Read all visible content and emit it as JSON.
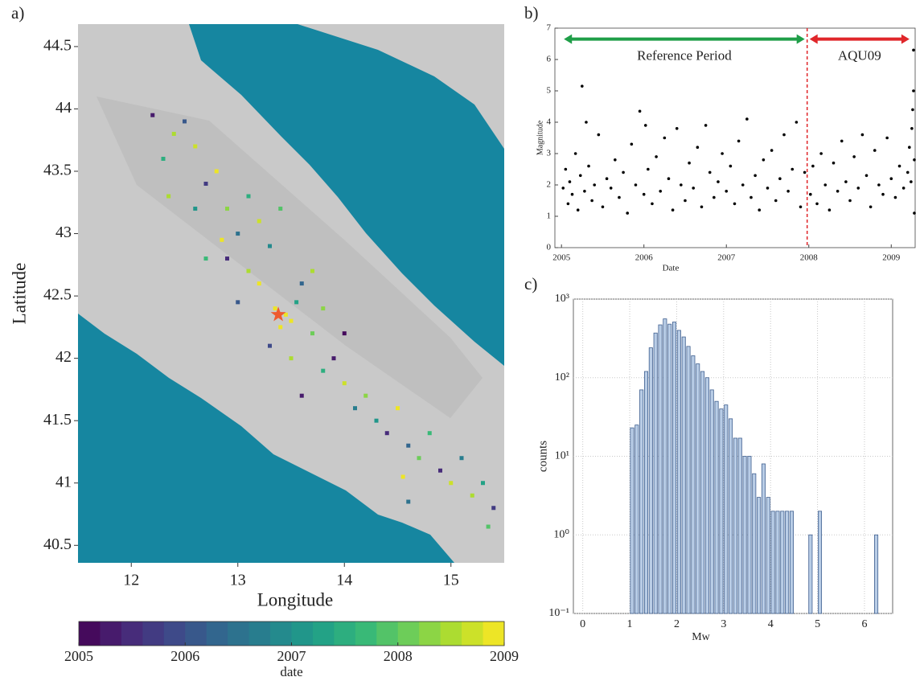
{
  "chart_data": [
    {
      "type": "map",
      "panel_label": "a)",
      "xlabel": "Longitude",
      "ylabel": "Latitude",
      "xlim": [
        11.5,
        15.5
      ],
      "ylim": [
        40.36,
        44.68
      ],
      "xticks": [
        12,
        13,
        14,
        15
      ],
      "yticks": [
        40.5,
        41,
        41.5,
        42,
        42.5,
        43,
        43.5,
        44,
        44.5
      ],
      "sea_color": "#1686a0",
      "land_color": "#c9c9c9",
      "x": [
        12.2,
        12.4,
        12.5,
        12.3,
        12.6,
        12.7,
        12.8,
        12.6,
        12.9,
        13.0,
        12.85,
        13.1,
        13.2,
        12.9,
        13.1,
        13.3,
        13.4,
        13.2,
        13.35,
        13.45,
        13.5,
        13.4,
        13.55,
        13.6,
        13.7,
        13.3,
        13.5,
        13.8,
        13.9,
        14.0,
        14.1,
        14.2,
        14.3,
        14.4,
        14.5,
        14.6,
        14.7,
        14.8,
        14.9,
        15.0,
        15.1,
        15.2,
        15.3,
        15.4,
        14.55,
        13.7,
        13.0,
        12.7,
        13.6,
        12.35,
        14.6,
        15.35,
        13.8,
        14.0
      ],
      "values": [
        43.95,
        43.8,
        43.9,
        43.6,
        43.7,
        43.4,
        43.5,
        43.2,
        43.2,
        43.0,
        42.95,
        43.3,
        43.1,
        42.8,
        42.7,
        42.9,
        43.2,
        42.6,
        42.4,
        42.35,
        42.3,
        42.25,
        42.45,
        42.6,
        42.2,
        42.1,
        42.0,
        41.9,
        42.0,
        41.8,
        41.6,
        41.7,
        41.5,
        41.4,
        41.6,
        41.3,
        41.2,
        41.4,
        41.1,
        41.0,
        41.2,
        40.9,
        41.0,
        40.8,
        41.05,
        42.7,
        42.45,
        42.8,
        41.7,
        43.3,
        40.85,
        40.65,
        42.4,
        42.2
      ],
      "color_values": [
        2005.3,
        2008.5,
        2006.1,
        2007.4,
        2008.8,
        2005.8,
        2008.9,
        2007.0,
        2008.2,
        2006.5,
        2008.95,
        2007.6,
        2008.7,
        2005.5,
        2008.4,
        2006.9,
        2007.9,
        2008.9,
        2009.0,
        2009.0,
        2008.95,
        2009.0,
        2007.2,
        2006.3,
        2008.1,
        2005.9,
        2008.6,
        2007.5,
        2005.2,
        2008.8,
        2006.7,
        2008.3,
        2007.1,
        2005.6,
        2008.9,
        2006.2,
        2008.0,
        2007.7,
        2005.4,
        2008.7,
        2006.8,
        2008.4,
        2007.3,
        2005.7,
        2008.95,
        2008.5,
        2006.0,
        2007.8,
        2005.3,
        2008.6,
        2006.4,
        2007.9,
        2008.2,
        2005.1
      ],
      "mainshock": {
        "lon": 13.38,
        "lat": 42.35,
        "color": "#ee5a2f"
      },
      "colorbar": {
        "label": "date",
        "colormap": "viridis",
        "color_levels": 20,
        "lim": [
          2005,
          2009
        ],
        "ticks": [
          2005,
          2006,
          2007,
          2008,
          2009
        ]
      }
    },
    {
      "type": "scatter",
      "panel_label": "b)",
      "xlabel": "Date",
      "ylabel": "Magnitude",
      "color": "#000000",
      "xlim": [
        2004.92,
        2009.29
      ],
      "ylim": [
        0,
        7
      ],
      "xticks": [
        2005,
        2006,
        2007,
        2008,
        2009
      ],
      "yticks": [
        0,
        1,
        2,
        3,
        4,
        5,
        6,
        7
      ],
      "x": [
        2005.02,
        2005.05,
        2005.08,
        2005.1,
        2005.13,
        2005.17,
        2005.2,
        2005.23,
        2005.25,
        2005.28,
        2005.3,
        2005.33,
        2005.37,
        2005.4,
        2005.45,
        2005.5,
        2005.55,
        2005.6,
        2005.65,
        2005.7,
        2005.75,
        2005.8,
        2005.85,
        2005.9,
        2005.95,
        2006.0,
        2006.02,
        2006.05,
        2006.1,
        2006.15,
        2006.2,
        2006.25,
        2006.3,
        2006.35,
        2006.4,
        2006.45,
        2006.5,
        2006.55,
        2006.6,
        2006.65,
        2006.7,
        2006.75,
        2006.8,
        2006.85,
        2006.9,
        2006.95,
        2007.0,
        2007.05,
        2007.1,
        2007.15,
        2007.2,
        2007.25,
        2007.3,
        2007.35,
        2007.4,
        2007.45,
        2007.5,
        2007.55,
        2007.6,
        2007.65,
        2007.7,
        2007.75,
        2007.8,
        2007.85,
        2007.9,
        2007.95,
        2008.02,
        2008.05,
        2008.1,
        2008.15,
        2008.2,
        2008.25,
        2008.3,
        2008.35,
        2008.4,
        2008.45,
        2008.5,
        2008.55,
        2008.6,
        2008.65,
        2008.7,
        2008.75,
        2008.8,
        2008.85,
        2008.9,
        2008.95,
        2009.0,
        2009.05,
        2009.1,
        2009.15,
        2009.2,
        2009.22,
        2009.24,
        2009.25,
        2009.26,
        2009.27,
        2009.27,
        2009.28,
        2009.28
      ],
      "values": [
        1.9,
        2.5,
        1.4,
        2.1,
        1.7,
        3.0,
        1.2,
        2.3,
        5.15,
        1.8,
        4.0,
        2.6,
        1.5,
        2.0,
        3.6,
        1.3,
        2.2,
        1.9,
        2.8,
        1.6,
        2.4,
        1.1,
        3.3,
        2.0,
        4.35,
        1.7,
        3.9,
        2.5,
        1.4,
        2.9,
        1.8,
        3.5,
        2.2,
        1.2,
        3.8,
        2.0,
        1.5,
        2.7,
        1.9,
        3.2,
        1.3,
        3.9,
        2.4,
        1.6,
        2.1,
        3.0,
        1.8,
        2.6,
        1.4,
        3.4,
        2.0,
        4.1,
        1.6,
        2.3,
        1.2,
        2.8,
        1.9,
        3.1,
        1.5,
        2.2,
        3.6,
        1.8,
        2.5,
        4.0,
        1.3,
        2.4,
        1.7,
        2.6,
        1.4,
        3.0,
        2.0,
        1.2,
        2.7,
        1.8,
        3.4,
        2.1,
        1.5,
        2.9,
        1.9,
        3.6,
        2.3,
        1.3,
        3.1,
        2.0,
        1.7,
        3.5,
        2.2,
        1.6,
        2.6,
        1.9,
        2.4,
        3.2,
        2.1,
        3.8,
        4.4,
        5.0,
        6.3,
        2.8,
        1.1
      ],
      "vline": {
        "x": 2007.98,
        "color": "#e0262a"
      },
      "annotations": [
        {
          "text": "Reference Period",
          "x": [
            2005,
            2007.98
          ],
          "y": 6.65,
          "color": "#1f9e48"
        },
        {
          "text": "AQU09",
          "x": [
            2007.98,
            2009.25
          ],
          "y": 6.65,
          "color": "#e0262a"
        }
      ]
    },
    {
      "type": "histogram",
      "panel_label": "c)",
      "xlabel": "Mw",
      "ylabel": "counts",
      "color": "#b9cde6",
      "edge_color": "#3f5f8f",
      "xlim": [
        -0.2,
        6.6
      ],
      "ylim": [
        0.1,
        1000
      ],
      "ylog": true,
      "grid": true,
      "xticks": [
        0,
        1,
        2,
        3,
        4,
        5,
        6
      ],
      "yticks": [
        {
          "value": 0.1,
          "label": "10⁻¹"
        },
        {
          "value": 1,
          "label": "10⁰"
        },
        {
          "value": 10,
          "label": "10¹"
        },
        {
          "value": 100,
          "label": "10²"
        },
        {
          "value": 1000,
          "label": "10³"
        }
      ],
      "bins": [
        1.0,
        1.1,
        1.2,
        1.3,
        1.4,
        1.5,
        1.6,
        1.7,
        1.8,
        1.9,
        2.0,
        2.1,
        2.2,
        2.3,
        2.4,
        2.5,
        2.6,
        2.7,
        2.8,
        2.9,
        3.0,
        3.1,
        3.2,
        3.3,
        3.4,
        3.5,
        3.6,
        3.7,
        3.8,
        3.9,
        4.0,
        4.1,
        4.2,
        4.3,
        4.4,
        4.5,
        4.6,
        4.7,
        4.8,
        4.9,
        5.0,
        5.1,
        5.2,
        5.3,
        5.4,
        5.5,
        5.6,
        5.7,
        5.8,
        5.9,
        6.0,
        6.1,
        6.2,
        6.3
      ],
      "values": [
        23,
        25,
        70,
        120,
        240,
        370,
        470,
        560,
        480,
        510,
        400,
        330,
        250,
        190,
        150,
        120,
        100,
        70,
        50,
        40,
        45,
        30,
        17,
        17,
        10,
        10,
        6,
        3,
        8,
        3,
        2,
        2,
        2,
        2,
        2,
        0,
        0,
        0,
        1,
        0,
        2,
        0,
        0,
        0,
        0,
        0,
        0,
        0,
        0,
        0,
        0,
        0,
        1
      ]
    }
  ]
}
